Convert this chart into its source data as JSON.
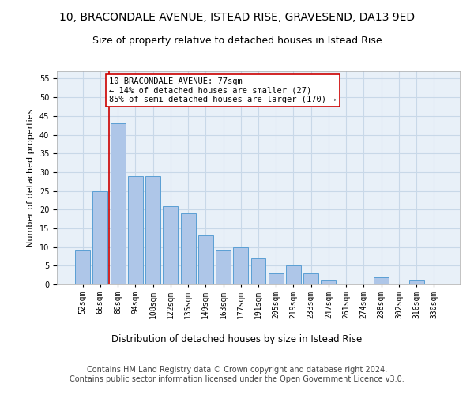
{
  "title": "10, BRACONDALE AVENUE, ISTEAD RISE, GRAVESEND, DA13 9ED",
  "subtitle": "Size of property relative to detached houses in Istead Rise",
  "xlabel_bottom": "Distribution of detached houses by size in Istead Rise",
  "ylabel": "Number of detached properties",
  "bar_labels": [
    "52sqm",
    "66sqm",
    "80sqm",
    "94sqm",
    "108sqm",
    "122sqm",
    "135sqm",
    "149sqm",
    "163sqm",
    "177sqm",
    "191sqm",
    "205sqm",
    "219sqm",
    "233sqm",
    "247sqm",
    "261sqm",
    "274sqm",
    "288sqm",
    "302sqm",
    "316sqm",
    "330sqm"
  ],
  "bar_values": [
    9,
    25,
    43,
    29,
    29,
    21,
    19,
    13,
    9,
    10,
    7,
    3,
    5,
    3,
    1,
    0,
    0,
    2,
    0,
    1,
    0
  ],
  "bar_color": "#aec6e8",
  "bar_edge_color": "#5a9fd4",
  "vline_x_index": 1,
  "vline_color": "#cc0000",
  "annotation_text": "10 BRACONDALE AVENUE: 77sqm\n← 14% of detached houses are smaller (27)\n85% of semi-detached houses are larger (170) →",
  "ylim": [
    0,
    57
  ],
  "yticks": [
    0,
    5,
    10,
    15,
    20,
    25,
    30,
    35,
    40,
    45,
    50,
    55
  ],
  "grid_color": "#c8d8e8",
  "background_color": "#e8f0f8",
  "footer": "Contains HM Land Registry data © Crown copyright and database right 2024.\nContains public sector information licensed under the Open Government Licence v3.0.",
  "title_fontsize": 10,
  "subtitle_fontsize": 9,
  "footer_fontsize": 7,
  "annotation_fontsize": 7.5,
  "ylabel_fontsize": 8,
  "xlabel_fontsize": 8.5,
  "tick_fontsize": 7
}
